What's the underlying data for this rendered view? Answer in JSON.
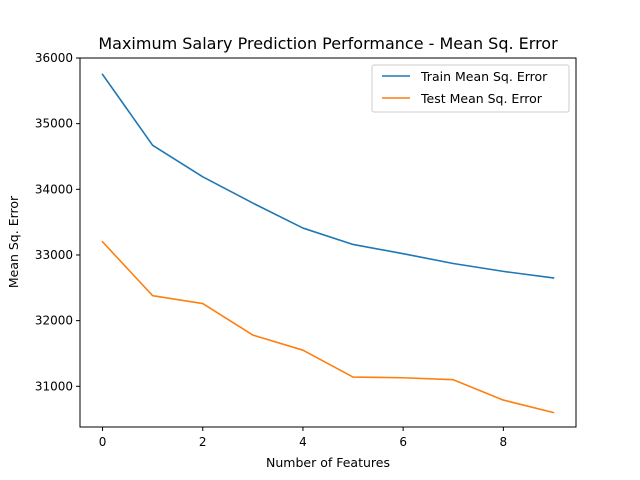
{
  "chart_data": {
    "type": "line",
    "title": "Maximum Salary Prediction Performance - Mean Sq. Error",
    "xlabel": "Number of Features",
    "ylabel": "Mean Sq. Error",
    "x": [
      0,
      1,
      2,
      3,
      4,
      5,
      6,
      7,
      8,
      9
    ],
    "xlim": [
      -0.45,
      9.45
    ],
    "ylim": [
      30380,
      36000
    ],
    "xticks": [
      0,
      2,
      4,
      6,
      8
    ],
    "yticks": [
      31000,
      32000,
      33000,
      34000,
      35000,
      36000
    ],
    "grid": false,
    "legend_position": "top-right",
    "series": [
      {
        "name": "Train Mean Sq. Error",
        "color": "#1f77b4",
        "values": [
          35750,
          34670,
          34190,
          33790,
          33410,
          33160,
          33020,
          32870,
          32750,
          32650
        ]
      },
      {
        "name": "Test Mean Sq. Error",
        "color": "#ff7f0e",
        "values": [
          33200,
          32380,
          32260,
          31780,
          31550,
          31140,
          31130,
          31100,
          30790,
          30600
        ]
      }
    ]
  }
}
